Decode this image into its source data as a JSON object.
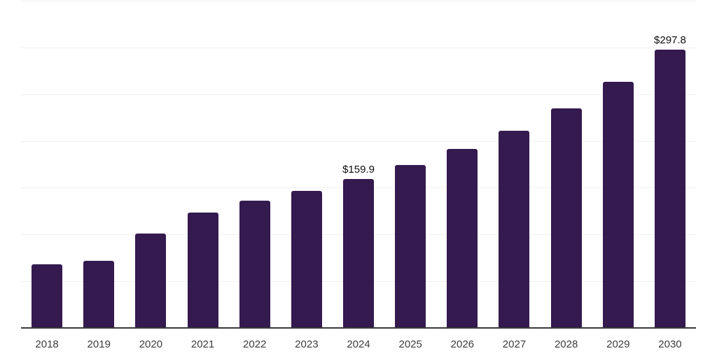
{
  "chart_data": {
    "type": "bar",
    "title": "",
    "xlabel": "",
    "ylabel": "",
    "categories": [
      "2018",
      "2019",
      "2020",
      "2021",
      "2022",
      "2023",
      "2024",
      "2025",
      "2026",
      "2027",
      "2028",
      "2029",
      "2030"
    ],
    "values": [
      68.0,
      71.7,
      100.8,
      123.7,
      136.3,
      147.0,
      159.9,
      174.4,
      191.4,
      211.5,
      235.1,
      263.8,
      297.8
    ],
    "value_labels": [
      "",
      "",
      "",
      "",
      "",
      "",
      "$159.9",
      "",
      "",
      "",
      "",
      "",
      "$297.8"
    ],
    "ylim": [
      0,
      350
    ],
    "gridline_interval": 50,
    "grid": "horizontal-only",
    "y_tick_labels_visible": false,
    "legend": "none",
    "colors": {
      "bar": "#341a4f",
      "gridline": "#f1f1f1",
      "axis_line": "#3a3a3a",
      "x_tick_label": "#3d3d3d",
      "value_label": "#0f0f0f",
      "background": "#ffffff"
    }
  }
}
